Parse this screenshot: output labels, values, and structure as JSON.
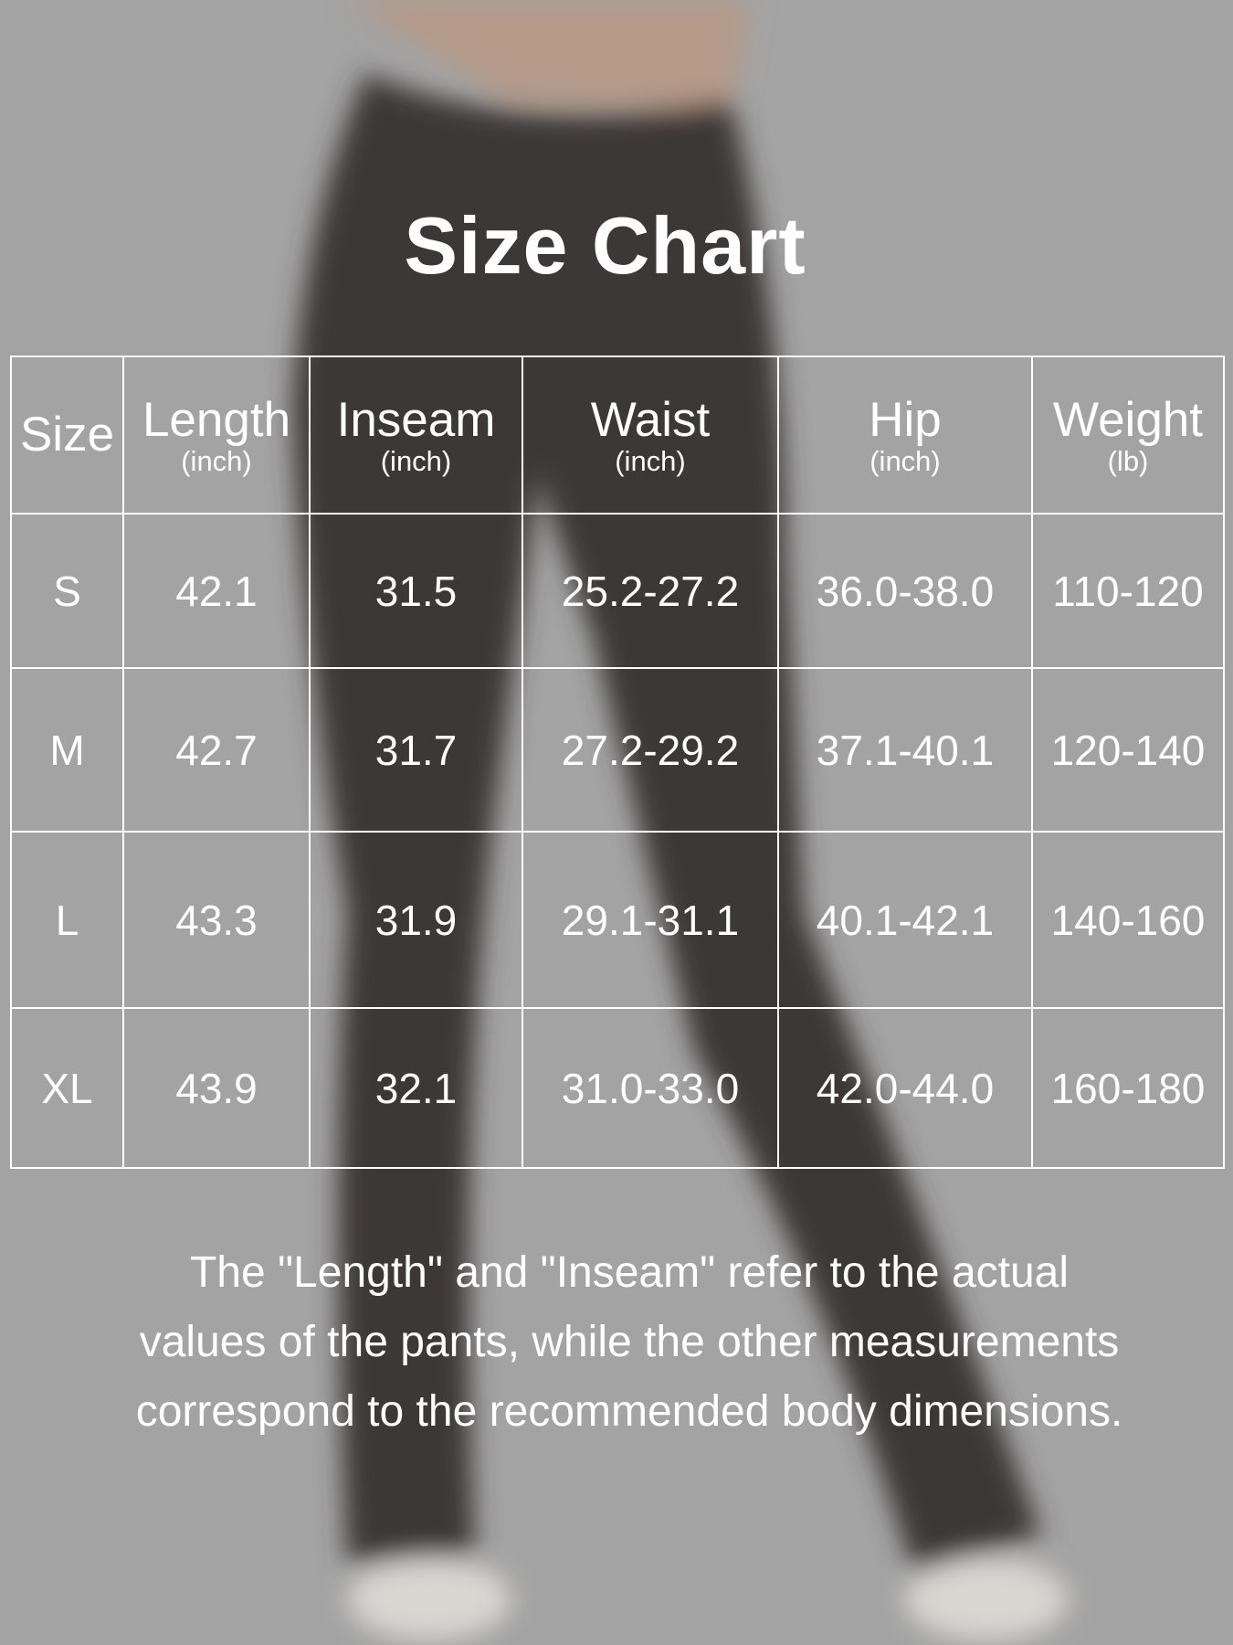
{
  "title": "Size Chart",
  "colors": {
    "background": "#a3a3a3",
    "garment": "#3c3937",
    "text": "#ffffff"
  },
  "table": {
    "headers": [
      {
        "label": "Size",
        "unit": ""
      },
      {
        "label": "Length",
        "unit": "(inch)"
      },
      {
        "label": "Inseam",
        "unit": "(inch)"
      },
      {
        "label": "Waist",
        "unit": "(inch)"
      },
      {
        "label": "Hip",
        "unit": "(inch)"
      },
      {
        "label": "Weight",
        "unit": "(lb)"
      }
    ],
    "rows": [
      [
        "S",
        "42.1",
        "31.5",
        "25.2-27.2",
        "36.0-38.0",
        "110-120"
      ],
      [
        "M",
        "42.7",
        "31.7",
        "27.2-29.2",
        "37.1-40.1",
        "120-140"
      ],
      [
        "L",
        "43.3",
        "31.9",
        "29.1-31.1",
        "40.1-42.1",
        "140-160"
      ],
      [
        "XL",
        "43.9",
        "32.1",
        "31.0-33.0",
        "42.0-44.0",
        "160-180"
      ]
    ]
  },
  "note": [
    "The \"Length\" and \"Inseam\" refer to the actual",
    "values of the pants, while the other measurements",
    "correspond to the recommended body dimensions."
  ]
}
